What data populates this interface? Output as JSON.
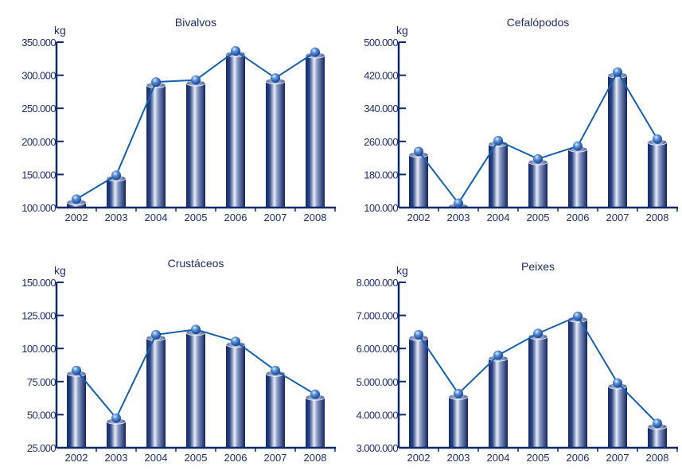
{
  "colors": {
    "axis": "#0d2a6b",
    "line": "#1560b0",
    "bar_dark": "#13245e",
    "bar_light": "#e8ecf6",
    "text": "#1c2f6e"
  },
  "chart_data": [
    {
      "type": "bar",
      "title": "Bivalvos",
      "ylabel": "kg",
      "categories": [
        "2002",
        "2003",
        "2004",
        "2005",
        "2006",
        "2007",
        "2008"
      ],
      "values": [
        108000,
        144000,
        285000,
        288000,
        332000,
        291000,
        330000
      ],
      "ylim": [
        100000,
        350000
      ],
      "yticks": [
        "100.000",
        "150.000",
        "200.000",
        "250.000",
        "300.000",
        "350.000"
      ],
      "line_overlay": true
    },
    {
      "type": "bar",
      "title": "Cefalópodos",
      "ylabel": "kg",
      "categories": [
        "2002",
        "2003",
        "2004",
        "2005",
        "2006",
        "2007",
        "2008"
      ],
      "values": [
        228000,
        103000,
        254000,
        210000,
        241000,
        420000,
        258000
      ],
      "ylim": [
        100000,
        500000
      ],
      "yticks": [
        "100.000",
        "180.000",
        "260.000",
        "340.000",
        "420.000",
        "500.000"
      ],
      "line_overlay": true
    },
    {
      "type": "bar",
      "title": "Crustáceos",
      "ylabel": "kg",
      "categories": [
        "2002",
        "2003",
        "2004",
        "2005",
        "2006",
        "2007",
        "2008"
      ],
      "values": [
        81000,
        45000,
        108000,
        112000,
        103000,
        81000,
        63000
      ],
      "ylim": [
        25000,
        150000
      ],
      "yticks": [
        "25.000",
        "50.000",
        "75.000",
        "100.000",
        "125.000",
        "150.000"
      ],
      "line_overlay": true
    },
    {
      "type": "bar",
      "title": "Peixes",
      "ylabel": "kg",
      "categories": [
        "2002",
        "2003",
        "2004",
        "2005",
        "2006",
        "2007",
        "2008"
      ],
      "values": [
        6320000,
        4540000,
        5700000,
        6360000,
        6880000,
        4860000,
        3640000
      ],
      "ylim": [
        3000000,
        8000000
      ],
      "yticks": [
        "3.000.000",
        "4.000.000",
        "5.000.000",
        "6.000.000",
        "7.000.000",
        "8.000.000"
      ],
      "line_overlay": true
    }
  ]
}
